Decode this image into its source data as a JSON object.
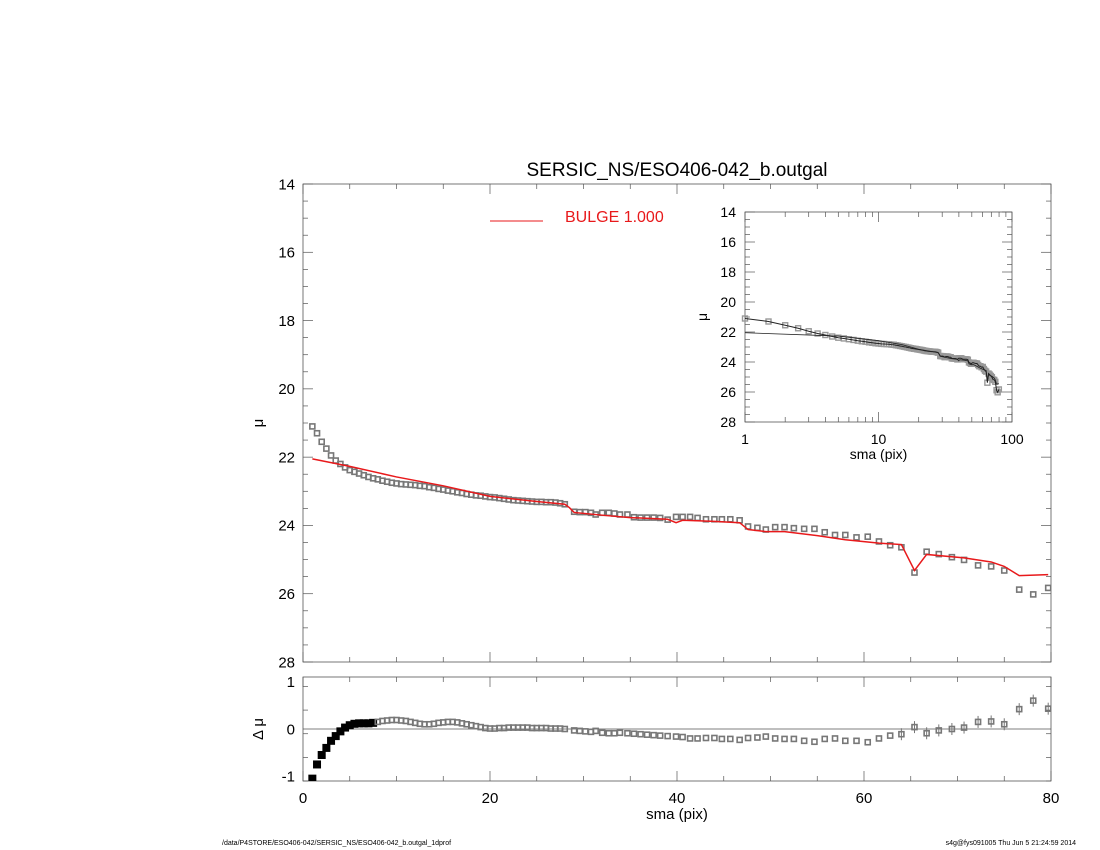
{
  "title": "SERSIC_NS/ESO406-042_b.outgal",
  "footer_left": "/data/P4STORE/ESO406-042/SERSIC_NS/ESO406-042_b.outgal_1dprof",
  "footer_right": "s4g@fys091005  Thu Jun  5 21:24:59 2014",
  "colors": {
    "model": "#e8191b",
    "data": "#777777",
    "inset_model": "#222222"
  },
  "chart_data": [
    {
      "type": "scatter",
      "panel": "main",
      "title": "SERSIC_NS/ESO406-042_b.outgal",
      "xlabel": "",
      "ylabel": "μ",
      "xlim": [
        0,
        80
      ],
      "ylim": [
        28,
        14
      ],
      "y_reversed": true,
      "xticks": [
        0,
        20,
        40,
        60,
        80
      ],
      "yticks": [
        14,
        16,
        18,
        20,
        22,
        24,
        26,
        28
      ],
      "legend": {
        "label": "BULGE  1.000",
        "placement": "top-center"
      },
      "series": [
        {
          "name": "BULGE  1.000",
          "kind": "line",
          "points": [
            [
              1,
              22.05
            ],
            [
              5,
              22.27
            ],
            [
              10,
              22.58
            ],
            [
              15,
              22.84
            ],
            [
              20,
              23.15
            ],
            [
              25,
              23.3
            ],
            [
              28,
              23.38
            ],
            [
              28.5,
              23.48
            ],
            [
              29,
              23.62
            ],
            [
              32,
              23.7
            ],
            [
              35,
              23.77
            ],
            [
              39,
              23.82
            ],
            [
              39.9,
              23.92
            ],
            [
              40.6,
              23.85
            ],
            [
              44,
              23.88
            ],
            [
              46.7,
              23.92
            ],
            [
              47.6,
              24.12
            ],
            [
              49.5,
              24.18
            ],
            [
              51.5,
              24.18
            ],
            [
              55,
              24.3
            ],
            [
              58,
              24.42
            ],
            [
              61.6,
              24.52
            ],
            [
              64,
              24.56
            ],
            [
              65.4,
              25.32
            ],
            [
              66.7,
              24.85
            ],
            [
              70.7,
              24.95
            ],
            [
              73.6,
              25.07
            ],
            [
              75,
              25.2
            ],
            [
              76.6,
              25.47
            ],
            [
              79.7,
              25.44
            ]
          ]
        }
      ]
    },
    {
      "type": "scatter",
      "panel": "residual",
      "xlabel": "sma (pix)",
      "ylabel": "Δ μ",
      "xlim": [
        0,
        80
      ],
      "ylim": [
        -1.1,
        1.1
      ],
      "xticks": [
        0,
        20,
        40,
        60,
        80
      ],
      "yticks": [
        -1,
        0,
        1
      ]
    },
    {
      "type": "scatter",
      "panel": "inset",
      "xlabel": "sma (pix)",
      "ylabel": "μ",
      "xscale": "log",
      "xlim": [
        1,
        100
      ],
      "ylim": [
        28,
        14
      ],
      "y_reversed": true,
      "xticks": [
        1,
        10,
        100
      ],
      "yticks": [
        14,
        16,
        18,
        20,
        22,
        24,
        26,
        28
      ]
    }
  ],
  "profile": {
    "columns": [
      "sma",
      "mu",
      "delta_mu"
    ],
    "points": [
      [
        1,
        21.1,
        -1.05
      ],
      [
        1.5,
        21.3,
        -0.75
      ],
      [
        2,
        21.55,
        -0.55
      ],
      [
        2.5,
        21.75,
        -0.4
      ],
      [
        3,
        21.95,
        -0.25
      ],
      [
        3.5,
        22.1,
        -0.15
      ],
      [
        4,
        22.2,
        -0.05
      ],
      [
        4.5,
        22.3,
        0.03
      ],
      [
        5,
        22.38,
        0.08
      ],
      [
        5.5,
        22.43,
        0.11
      ],
      [
        6,
        22.48,
        0.12
      ],
      [
        6.5,
        22.53,
        0.12
      ],
      [
        7,
        22.58,
        0.12
      ],
      [
        7.5,
        22.62,
        0.13
      ],
      [
        8,
        22.65,
        0.15
      ],
      [
        8.5,
        22.69,
        0.17
      ],
      [
        9,
        22.72,
        0.18
      ],
      [
        9.5,
        22.75,
        0.19
      ],
      [
        10,
        22.77,
        0.19
      ],
      [
        10.5,
        22.79,
        0.18
      ],
      [
        11,
        22.8,
        0.17
      ],
      [
        11.5,
        22.81,
        0.15
      ],
      [
        12,
        22.82,
        0.13
      ],
      [
        12.5,
        22.84,
        0.11
      ],
      [
        13,
        22.85,
        0.1
      ],
      [
        13.5,
        22.88,
        0.1
      ],
      [
        14,
        22.9,
        0.11
      ],
      [
        14.5,
        22.93,
        0.13
      ],
      [
        15,
        22.95,
        0.14
      ],
      [
        15.5,
        22.98,
        0.15
      ],
      [
        16,
        23.0,
        0.15
      ],
      [
        16.5,
        23.03,
        0.14
      ],
      [
        17,
        23.05,
        0.12
      ],
      [
        17.5,
        23.08,
        0.1
      ],
      [
        18,
        23.1,
        0.08
      ],
      [
        18.5,
        23.12,
        0.06
      ],
      [
        19,
        23.13,
        0.04
      ],
      [
        19.5,
        23.15,
        0.02
      ],
      [
        20,
        23.17,
        0.01
      ],
      [
        20.5,
        23.18,
        0.01
      ],
      [
        21,
        23.2,
        0.02
      ],
      [
        21.5,
        23.22,
        0.02
      ],
      [
        22,
        23.24,
        0.03
      ],
      [
        22.5,
        23.26,
        0.03
      ],
      [
        23,
        23.27,
        0.03
      ],
      [
        23.5,
        23.28,
        0.03
      ],
      [
        24,
        23.29,
        0.03
      ],
      [
        24.5,
        23.3,
        0.02
      ],
      [
        25,
        23.31,
        0.02
      ],
      [
        25.5,
        23.31,
        0.02
      ],
      [
        26,
        23.32,
        0.02
      ],
      [
        26.5,
        23.32,
        0.01
      ],
      [
        27,
        23.33,
        0.01
      ],
      [
        27.5,
        23.35,
        0.01
      ],
      [
        28,
        23.38,
        0.0
      ],
      [
        29.0,
        23.6,
        -0.03
      ],
      [
        29.6,
        23.61,
        -0.04
      ],
      [
        30.2,
        23.61,
        -0.05
      ],
      [
        30.8,
        23.63,
        -0.06
      ],
      [
        31.3,
        23.68,
        -0.04
      ],
      [
        32.0,
        23.63,
        -0.08
      ],
      [
        32.7,
        23.63,
        -0.09
      ],
      [
        33.3,
        23.65,
        -0.09
      ],
      [
        33.9,
        23.68,
        -0.08
      ],
      [
        34.7,
        23.68,
        -0.09
      ],
      [
        35.4,
        23.76,
        -0.1
      ],
      [
        36.1,
        23.77,
        -0.11
      ],
      [
        36.8,
        23.77,
        -0.12
      ],
      [
        37.5,
        23.77,
        -0.13
      ],
      [
        38.2,
        23.78,
        -0.14
      ],
      [
        39.0,
        23.83,
        -0.15
      ],
      [
        39.9,
        23.75,
        -0.16
      ],
      [
        40.6,
        23.75,
        -0.17
      ],
      [
        41.4,
        23.75,
        -0.2
      ],
      [
        42.2,
        23.78,
        -0.2
      ],
      [
        43.1,
        23.82,
        -0.19
      ],
      [
        44.0,
        23.82,
        -0.19
      ],
      [
        44.8,
        23.82,
        -0.21
      ],
      [
        45.7,
        23.82,
        -0.21
      ],
      [
        46.7,
        23.85,
        -0.23
      ],
      [
        47.6,
        24.03,
        -0.19
      ],
      [
        48.6,
        24.07,
        -0.18
      ],
      [
        49.5,
        24.12,
        -0.16
      ],
      [
        50.5,
        24.05,
        -0.2
      ],
      [
        51.5,
        24.05,
        -0.21
      ],
      [
        52.5,
        24.08,
        -0.21
      ],
      [
        53.6,
        24.1,
        -0.25
      ],
      [
        54.7,
        24.1,
        -0.27
      ],
      [
        55.8,
        24.2,
        -0.21
      ],
      [
        56.9,
        24.28,
        -0.2
      ],
      [
        58.0,
        24.28,
        -0.25
      ],
      [
        59.2,
        24.35,
        -0.25
      ],
      [
        60.4,
        24.33,
        -0.28
      ],
      [
        61.6,
        24.47,
        -0.2
      ],
      [
        62.8,
        24.58,
        -0.14
      ],
      [
        64.0,
        24.64,
        -0.11
      ],
      [
        65.4,
        25.38,
        0.04
      ],
      [
        66.7,
        24.77,
        -0.09
      ],
      [
        68.0,
        24.84,
        -0.03
      ],
      [
        69.4,
        24.93,
        0.0
      ],
      [
        70.7,
        25.01,
        0.03
      ],
      [
        72.2,
        25.17,
        0.15
      ],
      [
        73.6,
        25.2,
        0.16
      ],
      [
        75.0,
        25.32,
        0.1
      ],
      [
        76.6,
        25.88,
        0.42
      ],
      [
        78.1,
        26.02,
        0.6
      ],
      [
        79.7,
        25.83,
        0.43
      ]
    ]
  }
}
